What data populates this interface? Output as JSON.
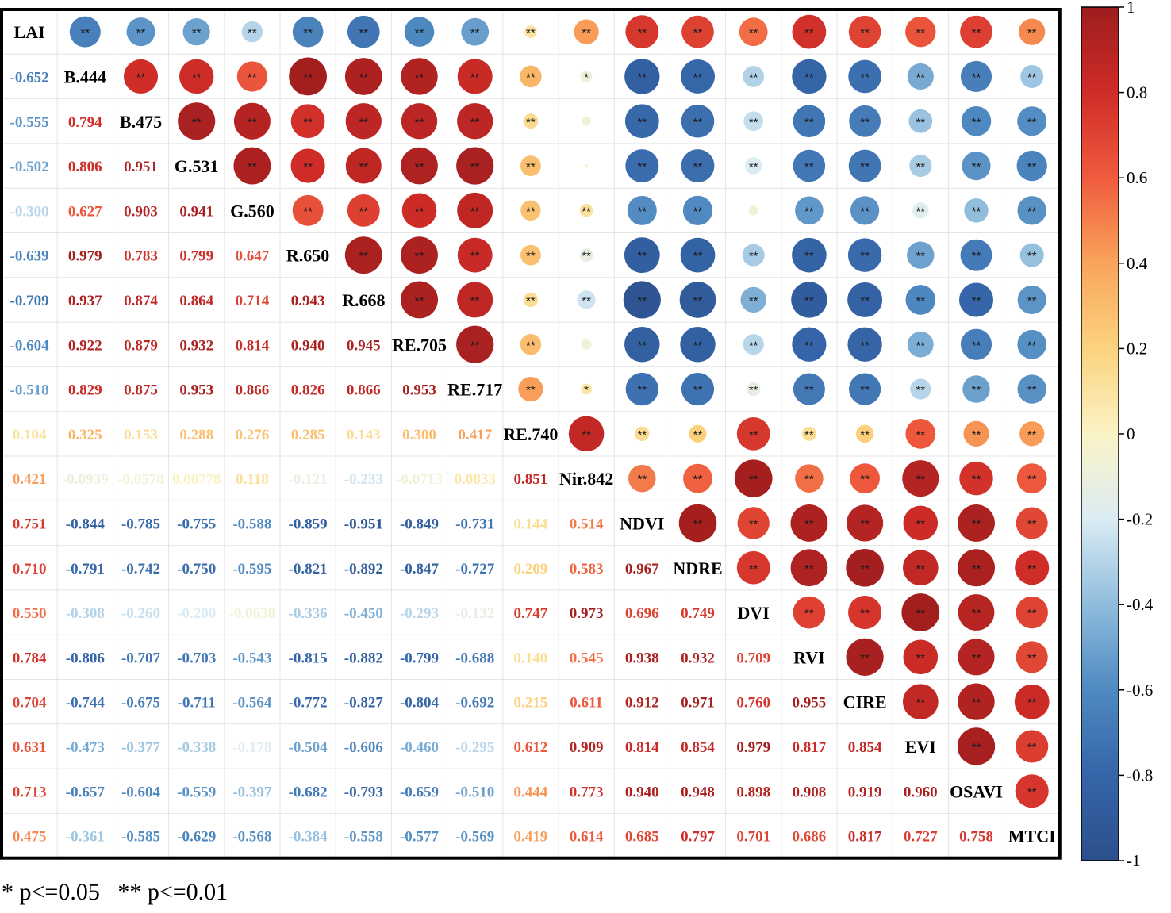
{
  "chart_data": {
    "type": "heatmap",
    "variables": [
      "LAI",
      "B.444",
      "B.475",
      "G.531",
      "G.560",
      "R.650",
      "R.668",
      "RE.705",
      "RE.717",
      "RE.740",
      "Nir.842",
      "NDVI",
      "NDRE",
      "DVI",
      "RVI",
      "CIRE",
      "EVI",
      "OSAVI",
      "MTCI"
    ],
    "lower_triangle_labels": [
      [],
      [
        "-0.652"
      ],
      [
        "-0.555",
        "0.794"
      ],
      [
        "-0.502",
        "0.806",
        "0.951"
      ],
      [
        "-0.300",
        "0.627",
        "0.903",
        "0.941"
      ],
      [
        "-0.639",
        "0.979",
        "0.783",
        "0.799",
        "0.647"
      ],
      [
        "-0.709",
        "0.937",
        "0.874",
        "0.864",
        "0.714",
        "0.943"
      ],
      [
        "-0.604",
        "0.922",
        "0.879",
        "0.932",
        "0.814",
        "0.940",
        "0.945"
      ],
      [
        "-0.518",
        "0.829",
        "0.875",
        "0.953",
        "0.866",
        "0.826",
        "0.866",
        "0.953"
      ],
      [
        "0.104",
        "0.325",
        "0.153",
        "0.288",
        "0.276",
        "0.285",
        "0.143",
        "0.300",
        "0.417"
      ],
      [
        "0.421",
        "-0.0939",
        "-0.0578",
        "0.00778",
        "0.118",
        "-0.121",
        "-0.233",
        "-0.0713",
        "0.0833",
        "0.851"
      ],
      [
        "0.751",
        "-0.844",
        "-0.785",
        "-0.755",
        "-0.588",
        "-0.859",
        "-0.951",
        "-0.849",
        "-0.731",
        "0.144",
        "0.514"
      ],
      [
        "0.710",
        "-0.791",
        "-0.742",
        "-0.750",
        "-0.595",
        "-0.821",
        "-0.892",
        "-0.847",
        "-0.727",
        "0.209",
        "0.583",
        "0.967"
      ],
      [
        "0.550",
        "-0.308",
        "-0.260",
        "-0.200",
        "-0.0638",
        "-0.336",
        "-0.450",
        "-0.293",
        "-0.132",
        "0.747",
        "0.973",
        "0.696",
        "0.749"
      ],
      [
        "0.784",
        "-0.806",
        "-0.707",
        "-0.703",
        "-0.543",
        "-0.815",
        "-0.882",
        "-0.799",
        "-0.688",
        "0.140",
        "0.545",
        "0.938",
        "0.932",
        "0.709"
      ],
      [
        "0.704",
        "-0.744",
        "-0.675",
        "-0.711",
        "-0.564",
        "-0.772",
        "-0.827",
        "-0.804",
        "-0.692",
        "0.215",
        "0.611",
        "0.912",
        "0.971",
        "0.760",
        "0.955"
      ],
      [
        "0.631",
        "-0.473",
        "-0.377",
        "-0.338",
        "-0.178",
        "-0.504",
        "-0.606",
        "-0.460",
        "-0.295",
        "0.612",
        "0.909",
        "0.814",
        "0.854",
        "0.979",
        "0.817",
        "0.854"
      ],
      [
        "0.713",
        "-0.657",
        "-0.604",
        "-0.559",
        "-0.397",
        "-0.682",
        "-0.793",
        "-0.659",
        "-0.510",
        "0.444",
        "0.773",
        "0.940",
        "0.948",
        "0.898",
        "0.908",
        "0.919",
        "0.960"
      ],
      [
        "0.475",
        "-0.361",
        "-0.585",
        "-0.629",
        "-0.568",
        "-0.384",
        "-0.558",
        "-0.577",
        "-0.569",
        "0.419",
        "0.614",
        "0.685",
        "0.797",
        "0.701",
        "0.686",
        "0.817",
        "0.727",
        "0.758"
      ]
    ],
    "significance": {
      "default": "**",
      "exceptions": [
        {
          "pair": [
            "B.444",
            "Nir.842"
          ],
          "mark": "*"
        },
        {
          "pair": [
            "B.475",
            "Nir.842"
          ],
          "mark": ""
        },
        {
          "pair": [
            "G.531",
            "Nir.842"
          ],
          "mark": ""
        },
        {
          "pair": [
            "G.560",
            "DVI"
          ],
          "mark": ""
        },
        {
          "pair": [
            "RE.705",
            "Nir.842"
          ],
          "mark": ""
        },
        {
          "pair": [
            "RE.717",
            "Nir.842"
          ],
          "mark": "*"
        }
      ]
    },
    "colorbar": {
      "range": [
        -1,
        1
      ],
      "ticks": [
        "1",
        "0.8",
        "0.6",
        "0.4",
        "0.2",
        "0",
        "-0.2",
        "-0.4",
        "-0.6",
        "-0.8",
        "-1"
      ]
    },
    "colorscale": [
      "#2c4f8c",
      "#3565a8",
      "#4f89c1",
      "#8fbcdc",
      "#dbecf4",
      "#fbf3c6",
      "#fbd37f",
      "#f9a45a",
      "#ef5b3e",
      "#cf2c28",
      "#9d1d1d"
    ]
  },
  "footnote": "* p<=0.05   ** p<=0.01"
}
